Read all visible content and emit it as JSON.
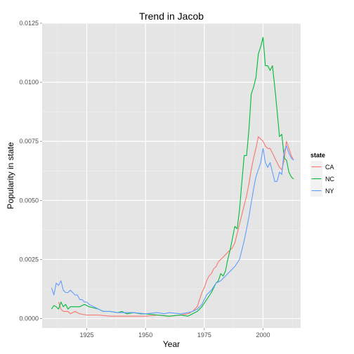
{
  "chart_data": {
    "type": "line",
    "title": "Trend in Jacob",
    "xlabel": "Year",
    "ylabel": "Popularity in state",
    "xlim": [
      1906,
      2016
    ],
    "ylim": [
      -0.0004,
      0.0125
    ],
    "x_ticks": [
      1925,
      1950,
      1975,
      2000
    ],
    "x_tick_labels": [
      "1925",
      "1950",
      "1975",
      "2000"
    ],
    "y_ticks": [
      0,
      0.0025,
      0.005,
      0.0075,
      0.01,
      0.0125
    ],
    "y_tick_labels": [
      "0.0000",
      "0.0025",
      "0.0050",
      "0.0075",
      "0.0100",
      "0.0125"
    ],
    "grid": true,
    "legend": {
      "title": "state",
      "placement": "right"
    },
    "series": [
      {
        "name": "CA",
        "color": "#f8766d",
        "x": [
          1913,
          1914,
          1915,
          1916,
          1917,
          1918,
          1920,
          1922,
          1925,
          1930,
          1935,
          1940,
          1945,
          1950,
          1955,
          1960,
          1965,
          1968,
          1970,
          1972,
          1973,
          1974,
          1975,
          1976,
          1977,
          1978,
          1979,
          1980,
          1981,
          1982,
          1983,
          1984,
          1985,
          1986,
          1987,
          1988,
          1989,
          1990,
          1991,
          1992,
          1993,
          1994,
          1995,
          1996,
          1997,
          1998,
          1999,
          2000,
          2001,
          2002,
          2003,
          2004,
          2005,
          2006,
          2007,
          2008,
          2009,
          2010,
          2011,
          2012,
          2013
        ],
        "y": [
          0.0007,
          0.0004,
          0.0003,
          0.0003,
          0.0003,
          0.0002,
          0.0003,
          0.0002,
          0.00015,
          0.00015,
          0.0001,
          0.0001,
          0.0001,
          0.0001,
          0.00015,
          0.0001,
          0.00015,
          0.0002,
          0.0003,
          0.0005,
          0.0008,
          0.0011,
          0.0013,
          0.0016,
          0.0018,
          0.0019,
          0.0021,
          0.0022,
          0.0024,
          0.0025,
          0.0026,
          0.0027,
          0.0028,
          0.0029,
          0.003,
          0.0032,
          0.0036,
          0.004,
          0.0044,
          0.0048,
          0.0052,
          0.0057,
          0.0063,
          0.0068,
          0.0072,
          0.0077,
          0.0076,
          0.0075,
          0.0073,
          0.0072,
          0.0072,
          0.007,
          0.0068,
          0.0066,
          0.0064,
          0.0063,
          0.0067,
          0.0075,
          0.0072,
          0.0069,
          0.0067
        ]
      },
      {
        "name": "NC",
        "color": "#00ba38",
        "x": [
          1910,
          1911,
          1912,
          1913,
          1914,
          1915,
          1916,
          1917,
          1918,
          1919,
          1920,
          1922,
          1924,
          1926,
          1928,
          1930,
          1932,
          1935,
          1938,
          1940,
          1942,
          1945,
          1948,
          1950,
          1955,
          1960,
          1965,
          1968,
          1970,
          1972,
          1974,
          1976,
          1978,
          1980,
          1981,
          1982,
          1983,
          1984,
          1985,
          1986,
          1987,
          1988,
          1989,
          1990,
          1991,
          1992,
          1993,
          1994,
          1995,
          1996,
          1997,
          1998,
          1999,
          2000,
          2001,
          2002,
          2003,
          2004,
          2005,
          2006,
          2007,
          2008,
          2009,
          2010,
          2011,
          2012,
          2013
        ],
        "y": [
          0.0004,
          0.00055,
          0.0005,
          0.0004,
          0.0007,
          0.0005,
          0.0006,
          0.0004,
          0.0005,
          0.0005,
          0.0005,
          0.0005,
          0.0006,
          0.0005,
          0.00045,
          0.0004,
          0.0003,
          0.0003,
          0.00025,
          0.0003,
          0.0002,
          0.00025,
          0.0002,
          0.0002,
          0.00015,
          0.0001,
          0.00015,
          0.0001,
          0.0002,
          0.0003,
          0.0005,
          0.0008,
          0.0011,
          0.0015,
          0.0016,
          0.0019,
          0.0018,
          0.002,
          0.0025,
          0.0029,
          0.0034,
          0.0039,
          0.0038,
          0.0046,
          0.0058,
          0.0069,
          0.0069,
          0.008,
          0.0095,
          0.0098,
          0.0102,
          0.0112,
          0.0115,
          0.0119,
          0.0107,
          0.0107,
          0.0105,
          0.0107,
          0.0098,
          0.0088,
          0.0077,
          0.0078,
          0.0068,
          0.0067,
          0.0062,
          0.006,
          0.0059
        ]
      },
      {
        "name": "NY",
        "color": "#619cff",
        "x": [
          1910,
          1911,
          1912,
          1913,
          1914,
          1915,
          1916,
          1917,
          1918,
          1919,
          1920,
          1921,
          1922,
          1923,
          1924,
          1925,
          1926,
          1928,
          1930,
          1932,
          1935,
          1938,
          1940,
          1945,
          1950,
          1955,
          1958,
          1960,
          1965,
          1968,
          1970,
          1972,
          1974,
          1975,
          1976,
          1978,
          1980,
          1982,
          1984,
          1986,
          1988,
          1990,
          1991,
          1992,
          1993,
          1994,
          1995,
          1996,
          1997,
          1998,
          1999,
          2000,
          2001,
          2002,
          2003,
          2004,
          2005,
          2006,
          2007,
          2008,
          2009,
          2010,
          2011,
          2012,
          2013
        ],
        "y": [
          0.0013,
          0.001,
          0.0015,
          0.0014,
          0.0016,
          0.0012,
          0.0011,
          0.0011,
          0.0012,
          0.0011,
          0.001,
          0.001,
          0.0008,
          0.0008,
          0.0007,
          0.0007,
          0.0006,
          0.0005,
          0.0004,
          0.0003,
          0.0003,
          0.00025,
          0.00025,
          0.00025,
          0.0002,
          0.00025,
          0.0002,
          0.00025,
          0.0002,
          0.00025,
          0.0003,
          0.0004,
          0.0006,
          0.0008,
          0.001,
          0.0012,
          0.0015,
          0.0016,
          0.0018,
          0.002,
          0.0022,
          0.0025,
          0.0029,
          0.0033,
          0.0038,
          0.0043,
          0.0049,
          0.0055,
          0.006,
          0.0063,
          0.0066,
          0.0072,
          0.0066,
          0.0064,
          0.0066,
          0.0062,
          0.0058,
          0.0058,
          0.0062,
          0.0061,
          0.0071,
          0.0073,
          0.007,
          0.0068,
          0.0067
        ]
      }
    ]
  }
}
